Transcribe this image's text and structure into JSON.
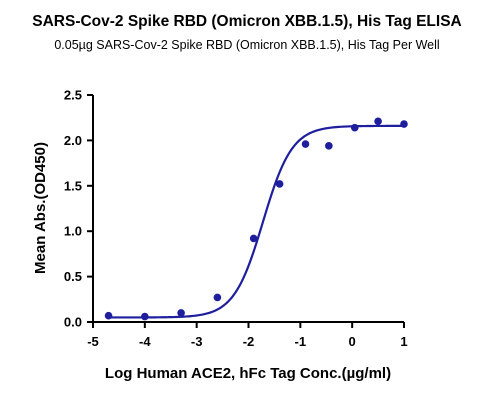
{
  "chart_data": {
    "type": "scatter",
    "title": "SARS-Cov-2 Spike RBD (Omicron XBB.1.5), His Tag ELISA",
    "subtitle": "0.05µg SARS-Cov-2 Spike RBD (Omicron XBB.1.5), His Tag Per Well",
    "xlabel": "Log Human ACE2, hFc Tag Conc.(µg/ml)",
    "ylabel": "Mean Abs.(OD450)",
    "xlim": [
      -5,
      1
    ],
    "ylim": [
      0,
      2.5
    ],
    "xticks": [
      "-5",
      "-4",
      "-3",
      "-2",
      "-1",
      "0",
      "1"
    ],
    "yticks": [
      "0.0",
      "0.5",
      "1.0",
      "1.5",
      "2.0",
      "2.5"
    ],
    "grid": false,
    "color": "#1f1f9e",
    "series": [
      {
        "x": [
          -4.7,
          -4.0,
          -3.3,
          -2.6,
          -1.9,
          -1.4,
          -0.9,
          -0.45,
          0.05,
          0.5,
          1.0
        ],
        "y": [
          0.07,
          0.06,
          0.1,
          0.27,
          0.92,
          1.52,
          1.96,
          1.94,
          2.14,
          2.21,
          2.18
        ]
      }
    ],
    "fit": {
      "model": "4PL",
      "bottom": 0.05,
      "top": 2.16,
      "logEC50": -1.72,
      "hill": 1.55
    }
  }
}
